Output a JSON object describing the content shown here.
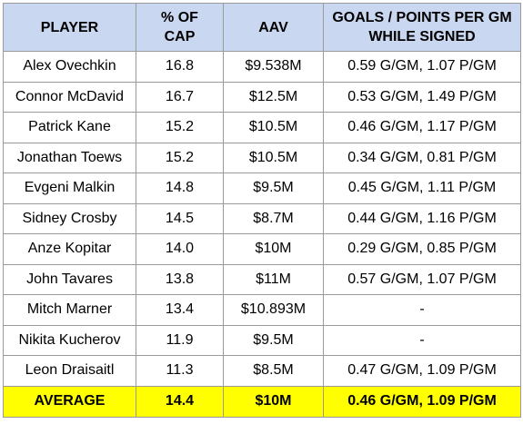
{
  "headers": [
    "PLAYER",
    "% OF CAP",
    "AAV",
    "GOALS / POINTS PER GM WHILE SIGNED"
  ],
  "rows": [
    [
      "Alex Ovechkin",
      "16.8",
      "$9.538M",
      "0.59 G/GM, 1.07 P/GM"
    ],
    [
      "Connor McDavid",
      "16.7",
      "$12.5M",
      "0.53 G/GM, 1.49 P/GM"
    ],
    [
      "Patrick Kane",
      "15.2",
      "$10.5M",
      "0.46 G/GM, 1.17 P/GM"
    ],
    [
      "Jonathan Toews",
      "15.2",
      "$10.5M",
      "0.34 G/GM, 0.81 P/GM"
    ],
    [
      "Evgeni Malkin",
      "14.8",
      "$9.5M",
      "0.45 G/GM, 1.11 P/GM"
    ],
    [
      "Sidney Crosby",
      "14.5",
      "$8.7M",
      "0.44 G/GM, 1.16 P/GM"
    ],
    [
      "Anze Kopitar",
      "14.0",
      "$10M",
      "0.29 G/GM, 0.85 P/GM"
    ],
    [
      "John Tavares",
      "13.8",
      "$11M",
      "0.57 G/GM, 1.07 P/GM"
    ],
    [
      "Mitch Marner",
      "13.4",
      "$10.893M",
      "-"
    ],
    [
      "Nikita Kucherov",
      "11.9",
      "$9.5M",
      "-"
    ],
    [
      "Leon Draisaitl",
      "11.3",
      "$8.5M",
      "0.47 G/GM, 1.09 P/GM"
    ]
  ],
  "average": [
    "AVERAGE",
    "14.4",
    "$10M",
    "0.46 G/GM, 1.09 P/GM"
  ],
  "colors": {
    "header_bg": "#cad7f0",
    "average_bg": "#ffff00",
    "border": "#9a9a9a"
  }
}
